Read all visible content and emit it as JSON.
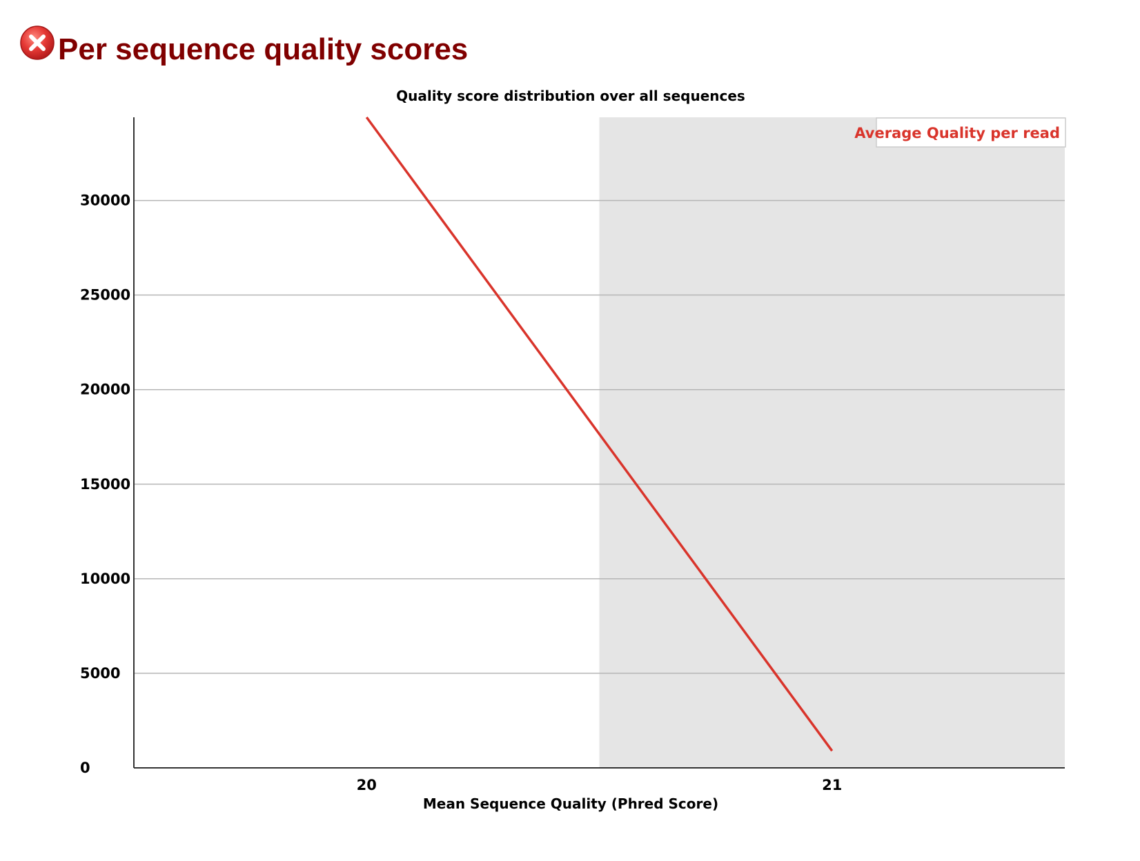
{
  "header": {
    "title": "Per sequence quality scores",
    "status_icon": "error-icon",
    "status_color": "#e03a3a",
    "title_color": "#800000"
  },
  "chart_data": {
    "type": "line",
    "title": "Quality score distribution over all sequences",
    "xlabel": "Mean Sequence Quality (Phred Score)",
    "ylabel": "",
    "x_ticks": [
      20,
      21
    ],
    "y_ticks": [
      0,
      5000,
      10000,
      15000,
      20000,
      25000,
      30000
    ],
    "xlim": [
      19.5,
      21.5
    ],
    "ylim": [
      0,
      34400
    ],
    "grid": true,
    "legend_position": "top-right",
    "shaded_region": {
      "x_from": 20.5,
      "x_to": 21.5,
      "color": "#e5e5e5"
    },
    "series": [
      {
        "name": "Average Quality per read",
        "color": "#d9342b",
        "x": [
          20,
          21
        ],
        "y": [
          34400,
          900
        ]
      }
    ]
  }
}
